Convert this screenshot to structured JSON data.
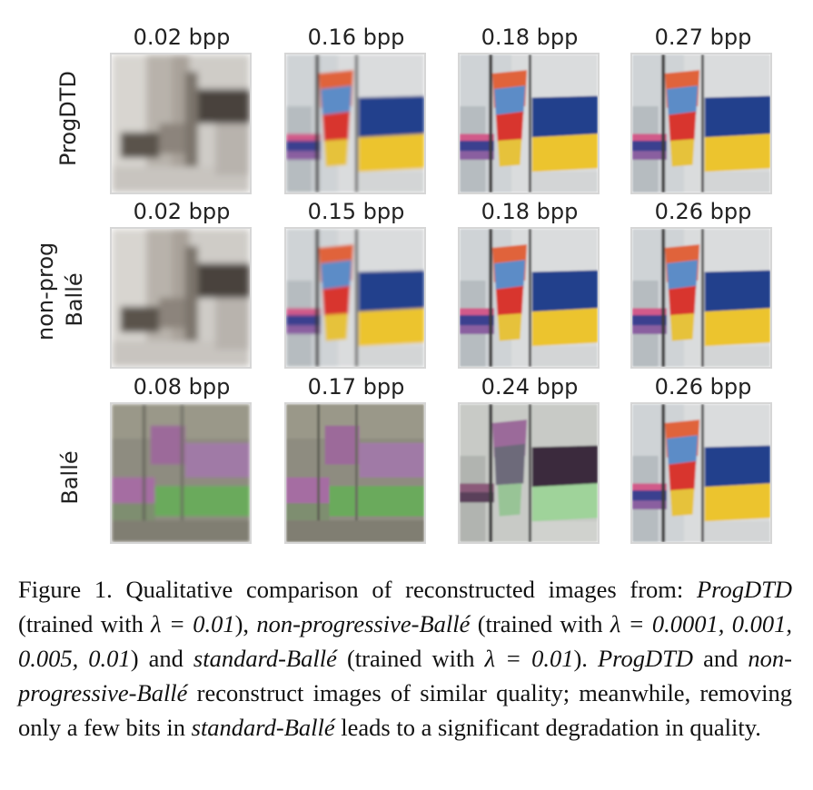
{
  "figure": {
    "row_labels": [
      "ProgDTD",
      "non-prog",
      "Ballé",
      "Ballé"
    ],
    "rows": [
      {
        "bpp": [
          "0.02 bpp",
          "0.16 bpp",
          "0.18 bpp",
          "0.27 bpp"
        ]
      },
      {
        "bpp": [
          "0.02 bpp",
          "0.15 bpp",
          "0.18 bpp",
          "0.26 bpp"
        ]
      },
      {
        "bpp": [
          "0.08 bpp",
          "0.17 bpp",
          "0.24 bpp",
          "0.26 bpp"
        ]
      }
    ]
  },
  "caption": {
    "p1": "Figure 1.  Qualitative comparison of reconstructed images from:",
    "e1": "ProgDTD",
    "p2": " (trained with ",
    "m1": "λ = 0.01",
    "p3": "), ",
    "e2": "non-progressive-Ballé",
    "p4": " (trained with ",
    "m2": "λ = 0.0001, 0.001, 0.005, 0.01",
    "p5": ") and ",
    "e3": "standard-Ballé",
    "p6": " (trained with ",
    "m3": "λ = 0.01",
    "p7": "). ",
    "e4": "ProgDTD",
    "p8": " and ",
    "e5": "non-progressive-Ballé",
    "p9": " reconstruct images of similar quality; meanwhile, removing only a few bits in ",
    "e6": "standard-Ballé",
    "p10": " leads to a significant degradation in quality."
  }
}
